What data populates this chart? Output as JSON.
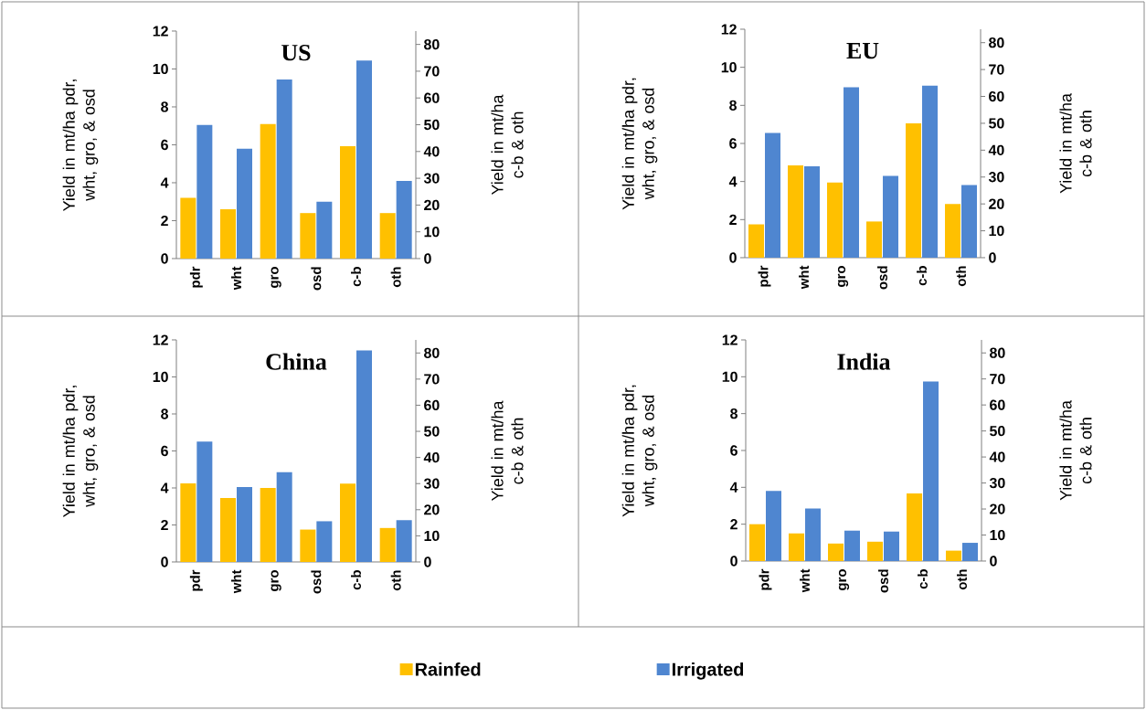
{
  "chart_data": [
    {
      "type": "bar",
      "title": "US",
      "categories": [
        "pdr",
        "wht",
        "gro",
        "osd",
        "c-b",
        "oth"
      ],
      "ylabel": "Yield in mt/ha pdr, wht, gro, & osd",
      "y2label": "Yield in mt/ha c-b & oth",
      "ylim": [
        0,
        12
      ],
      "yticks": [
        0,
        2,
        4,
        6,
        8,
        10,
        12
      ],
      "y2lim": [
        0,
        85
      ],
      "y2ticks": [
        0,
        10,
        20,
        30,
        40,
        50,
        60,
        70,
        80
      ],
      "series": [
        {
          "color": "#ffc000",
          "values": [
            3.2,
            2.6,
            7.1,
            2.4,
            null,
            null
          ]
        },
        {
          "color": "#4f86d0",
          "values": [
            7.05,
            5.8,
            9.45,
            3.0,
            null,
            null
          ]
        },
        {
          "color": "#ffc000",
          "axis": "y2",
          "values": [
            null,
            null,
            null,
            null,
            42,
            17
          ]
        },
        {
          "color": "#4f86d0",
          "axis": "y2",
          "values": [
            null,
            null,
            null,
            null,
            74,
            29
          ]
        }
      ]
    },
    {
      "type": "bar",
      "title": "EU",
      "categories": [
        "pdr",
        "wht",
        "gro",
        "osd",
        "c-b",
        "oth"
      ],
      "ylabel": "Yield in mt/ha pdr, wht, gro, & osd",
      "y2label": "Yield in mt/ha c-b & oth",
      "ylim": [
        0,
        12
      ],
      "yticks": [
        0,
        2,
        4,
        6,
        8,
        10,
        12
      ],
      "y2lim": [
        0,
        85
      ],
      "y2ticks": [
        0,
        10,
        20,
        30,
        40,
        50,
        60,
        70,
        80
      ],
      "series": [
        {
          "color": "#ffc000",
          "values": [
            1.75,
            4.85,
            3.95,
            1.9,
            null,
            null
          ]
        },
        {
          "color": "#4f86d0",
          "values": [
            6.55,
            4.8,
            8.95,
            4.3,
            null,
            null
          ]
        },
        {
          "color": "#ffc000",
          "axis": "y2",
          "values": [
            null,
            null,
            null,
            null,
            50,
            20
          ]
        },
        {
          "color": "#4f86d0",
          "axis": "y2",
          "values": [
            null,
            null,
            null,
            null,
            64,
            27
          ]
        }
      ]
    },
    {
      "type": "bar",
      "title": "China",
      "categories": [
        "pdr",
        "wht",
        "gro",
        "osd",
        "c-b",
        "oth"
      ],
      "ylabel": "Yield in mt/ha pdr, wht, gro, & osd",
      "y2label": "Yield in mt/ha c-b & oth",
      "ylim": [
        0,
        12
      ],
      "yticks": [
        0,
        2,
        4,
        6,
        8,
        10,
        12
      ],
      "y2lim": [
        0,
        85
      ],
      "y2ticks": [
        0,
        10,
        20,
        30,
        40,
        50,
        60,
        70,
        80
      ],
      "series": [
        {
          "color": "#ffc000",
          "values": [
            4.25,
            3.45,
            4.0,
            1.75,
            null,
            null
          ]
        },
        {
          "color": "#4f86d0",
          "values": [
            6.5,
            4.05,
            4.85,
            2.2,
            null,
            null
          ]
        },
        {
          "color": "#ffc000",
          "axis": "y2",
          "values": [
            null,
            null,
            null,
            null,
            30,
            13
          ]
        },
        {
          "color": "#4f86d0",
          "axis": "y2",
          "values": [
            null,
            null,
            null,
            null,
            81,
            16
          ]
        }
      ]
    },
    {
      "type": "bar",
      "title": "India",
      "categories": [
        "pdr",
        "wht",
        "gro",
        "osd",
        "c-b",
        "oth"
      ],
      "ylabel": "Yield in mt/ha pdr, wht, gro, & osd",
      "y2label": "Yield in mt/ha c-b & oth",
      "ylim": [
        0,
        12
      ],
      "yticks": [
        0,
        2,
        4,
        6,
        8,
        10,
        12
      ],
      "y2lim": [
        0,
        85
      ],
      "y2ticks": [
        0,
        10,
        20,
        30,
        40,
        50,
        60,
        70,
        80
      ],
      "legend": "bottom",
      "series": [
        {
          "name": "Rainfed",
          "color": "#ffc000",
          "values": [
            2.0,
            1.5,
            0.95,
            1.05,
            null,
            null
          ]
        },
        {
          "name": "Irrigated",
          "color": "#4f86d0",
          "values": [
            3.8,
            2.85,
            1.65,
            1.6,
            null,
            null
          ]
        },
        {
          "color": "#ffc000",
          "axis": "y2",
          "values": [
            null,
            null,
            null,
            null,
            26,
            4
          ]
        },
        {
          "color": "#4f86d0",
          "axis": "y2",
          "values": [
            null,
            null,
            null,
            null,
            69,
            7
          ]
        }
      ]
    }
  ]
}
